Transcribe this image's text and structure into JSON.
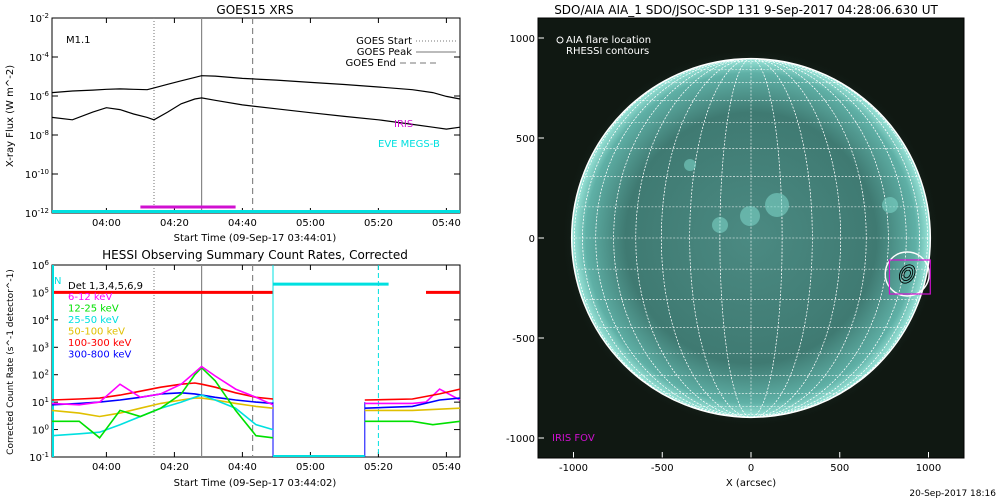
{
  "goes_panel": {
    "title": "GOES15 XRS",
    "flare_class": "M1.1",
    "ylabel": "X-ray Flux (W m^-2)",
    "xlabel": "Start Time (09-Sep-17 03:44:01)",
    "legend": [
      "GOES Start",
      "GOES Peak",
      "GOES End"
    ],
    "iris_label": "IRIS",
    "eve_label": "EVE MEGS-B",
    "colors": {
      "iris": "#d010d0",
      "eve": "#00e0e0"
    }
  },
  "hessi_panel": {
    "title": "HESSI Observing Summary Count Rates, Corrected",
    "ylabel": "Corrected Count Rate (s^-1 detector^-1)",
    "xlabel": "Start Time (09-Sep-17 03:44:02)",
    "det_label": "Det 1,3,4,5,6,9",
    "legend_extra": "N",
    "colors": {
      "low": "#ff00ff",
      "mid": "#00c000"
    }
  },
  "aia_panel": {
    "title": "SDO/AIA AIA_1 SDO/JSOC-SDP 131  9-Sep-2017 04:28:06.630 UT",
    "legend": [
      "AIA flare location",
      "RHESSI contours"
    ],
    "xlabel": "X (arcsec)",
    "fov_label": "IRIS FOV",
    "footer": "20-Sep-2017 18:16"
  },
  "chart_data": [
    {
      "type": "line",
      "title": "GOES15 XRS",
      "xlabel": "Start Time (09-Sep-17 03:44:01)",
      "ylabel": "X-ray Flux (W m^-2)",
      "y_scale": "log",
      "xlim": [
        "03:44",
        "05:44"
      ],
      "ylim": [
        1e-12,
        0.01
      ],
      "x_ticks": [
        "04:00",
        "04:20",
        "04:40",
        "05:00",
        "05:20",
        "05:40"
      ],
      "y_ticks": [
        "10^-12",
        "10^-10",
        "10^-8",
        "10^-6",
        "10^-4",
        "10^-2"
      ],
      "annotations": [
        "M1.1",
        "IRIS",
        "EVE MEGS-B"
      ],
      "markers": {
        "goes_start": "04:14",
        "goes_peak": "04:28",
        "goes_end": "04:43"
      },
      "series": [
        {
          "x": [
            "03:44",
            "03:50",
            "03:56",
            "04:00",
            "04:04",
            "04:08",
            "04:12",
            "04:14",
            "04:18",
            "04:22",
            "04:26",
            "04:28",
            "04:32",
            "04:40",
            "04:50",
            "05:00",
            "05:10",
            "05:20",
            "05:30",
            "05:36",
            "05:40",
            "05:44"
          ],
          "values": [
            1.5e-06,
            1.8e-06,
            2e-06,
            2.2e-06,
            2.3e-06,
            2.2e-06,
            2.1e-06,
            2.6e-06,
            4e-06,
            6e-06,
            9e-06,
            1.1e-05,
            1.05e-05,
            8e-06,
            6.5e-06,
            5e-06,
            3.9e-06,
            2.9e-06,
            2.1e-06,
            1.5e-06,
            9.5e-07,
            7e-07
          ]
        },
        {
          "x": [
            "03:44",
            "03:50",
            "03:56",
            "04:00",
            "04:04",
            "04:08",
            "04:12",
            "04:14",
            "04:18",
            "04:22",
            "04:26",
            "04:28",
            "04:32",
            "04:40",
            "04:50",
            "05:00",
            "05:10",
            "05:20",
            "05:30",
            "05:36",
            "05:40",
            "05:44"
          ],
          "values": [
            8e-08,
            6e-08,
            1.5e-07,
            2.5e-07,
            2e-07,
            1.2e-07,
            8e-08,
            6e-08,
            1.5e-07,
            4e-07,
            7e-07,
            8e-07,
            6e-07,
            3.5e-07,
            2.2e-07,
            1.4e-07,
            9e-08,
            6e-08,
            3.5e-08,
            2.5e-08,
            2e-08,
            2.5e-08
          ]
        }
      ],
      "iris_interval": [
        "04:10",
        "04:38"
      ],
      "eve_interval": [
        "03:44",
        "05:44"
      ]
    },
    {
      "type": "line",
      "title": "HESSI Observing Summary Count Rates, Corrected",
      "xlabel": "Start Time (09-Sep-17 03:44:02)",
      "ylabel": "Corrected Count Rate (s^-1 detector^-1)",
      "y_scale": "log",
      "xlim": [
        "03:44",
        "05:44"
      ],
      "ylim": [
        0.1,
        1000000
      ],
      "x_ticks": [
        "04:00",
        "04:20",
        "04:40",
        "05:00",
        "05:20",
        "05:40"
      ],
      "y_ticks": [
        "10^-1",
        "10^0",
        "10^1",
        "10^2",
        "10^3",
        "10^4",
        "10^5",
        "10^6"
      ],
      "markers": {
        "goes_start": "04:14",
        "goes_peak": "04:28",
        "goes_end": "04:43"
      },
      "series": [
        {
          "name": "6-12 keV",
          "color": "#ff00ff",
          "x": [
            "03:44",
            "03:52",
            "03:58",
            "04:04",
            "04:10",
            "04:16",
            "04:22",
            "04:26",
            "04:28",
            "04:32",
            "04:38",
            "04:44",
            "04:49"
          ],
          "values": [
            9,
            8,
            10,
            45,
            15,
            20,
            45,
            120,
            200,
            90,
            30,
            15,
            8
          ]
        },
        {
          "name": "12-25 keV",
          "color": "#00e000",
          "x": [
            "03:44",
            "03:52",
            "03:58",
            "04:04",
            "04:10",
            "04:16",
            "04:22",
            "04:26",
            "04:28",
            "04:32",
            "04:38",
            "04:44",
            "04:49"
          ],
          "values": [
            2,
            2,
            0.5,
            5,
            3,
            6,
            20,
            100,
            180,
            60,
            5,
            0.6,
            0.5
          ]
        },
        {
          "name": "25-50 keV",
          "color": "#00e0e0",
          "x": [
            "03:44",
            "03:52",
            "03:58",
            "04:04",
            "04:10",
            "04:16",
            "04:22",
            "04:26",
            "04:28",
            "04:32",
            "04:38",
            "04:44",
            "04:49"
          ],
          "values": [
            0.6,
            0.7,
            0.8,
            1.5,
            3,
            6,
            10,
            15,
            18,
            12,
            6,
            1.5,
            1.0
          ]
        },
        {
          "name": "50-100 keV",
          "color": "#e0c000",
          "x": [
            "03:44",
            "03:52",
            "03:58",
            "04:04",
            "04:10",
            "04:16",
            "04:22",
            "04:26",
            "04:28",
            "04:32",
            "04:38",
            "04:44",
            "04:49"
          ],
          "values": [
            5,
            4,
            3,
            4,
            6,
            9,
            12,
            14,
            14,
            12,
            9,
            7,
            6
          ]
        },
        {
          "name": "100-300 keV",
          "color": "#ff0000",
          "x": [
            "03:44",
            "03:52",
            "03:58",
            "04:04",
            "04:10",
            "04:16",
            "04:22",
            "04:26",
            "04:28",
            "04:32",
            "04:38",
            "04:44",
            "04:49"
          ],
          "values": [
            12,
            13,
            14,
            18,
            25,
            35,
            45,
            50,
            45,
            35,
            22,
            15,
            13
          ]
        },
        {
          "name": "300-800 keV",
          "color": "#0000ff",
          "x": [
            "03:44",
            "03:52",
            "03:58",
            "04:04",
            "04:10",
            "04:16",
            "04:22",
            "04:26",
            "04:28",
            "04:32",
            "04:38",
            "04:44",
            "04:49"
          ],
          "values": [
            8,
            9,
            10,
            12,
            15,
            20,
            22,
            20,
            18,
            15,
            12,
            10,
            9
          ]
        }
      ],
      "post_gap_series": [
        {
          "color": "#ff00ff",
          "x": [
            "05:16",
            "05:30",
            "05:34",
            "05:38",
            "05:44"
          ],
          "values": [
            9,
            9,
            10,
            30,
            12
          ]
        },
        {
          "color": "#00e000",
          "x": [
            "05:16",
            "05:30",
            "05:36",
            "05:44"
          ],
          "values": [
            2,
            2,
            1.5,
            2
          ]
        },
        {
          "color": "#ff0000",
          "x": [
            "05:16",
            "05:30",
            "05:38",
            "05:44"
          ],
          "values": [
            12,
            13,
            20,
            30
          ]
        },
        {
          "color": "#0000ff",
          "x": [
            "05:16",
            "05:30",
            "05:38",
            "05:44"
          ],
          "values": [
            6,
            7,
            12,
            14
          ]
        },
        {
          "color": "#e0c000",
          "x": [
            "05:16",
            "05:30",
            "05:44"
          ],
          "values": [
            5,
            5,
            6
          ]
        }
      ],
      "gap_interval": [
        "04:49",
        "05:16"
      ],
      "saa_cyan_level": 200000,
      "red_flag_level": 100000
    },
    {
      "type": "map",
      "title": "SDO/AIA AIA_1 SDO/JSOC-SDP 131  9-Sep-2017 04:28:06.630 UT",
      "xlabel": "X (arcsec)",
      "xlim": [
        -1200,
        1200
      ],
      "ylim": [
        -1100,
        1100
      ],
      "x_ticks": [
        "-1000",
        "-500",
        "0",
        "500",
        "1000"
      ],
      "y_ticks": [
        "1000",
        "500",
        "0",
        "-500",
        "-1000"
      ],
      "solar_radius_arcsec": 950,
      "flare_location": [
        880,
        -180
      ],
      "iris_fov": {
        "x": [
          780,
          1010
        ],
        "y": [
          -280,
          -110
        ]
      },
      "legend": [
        "AIA flare location",
        "RHESSI contours"
      ],
      "annotations": [
        "IRIS FOV"
      ]
    }
  ]
}
